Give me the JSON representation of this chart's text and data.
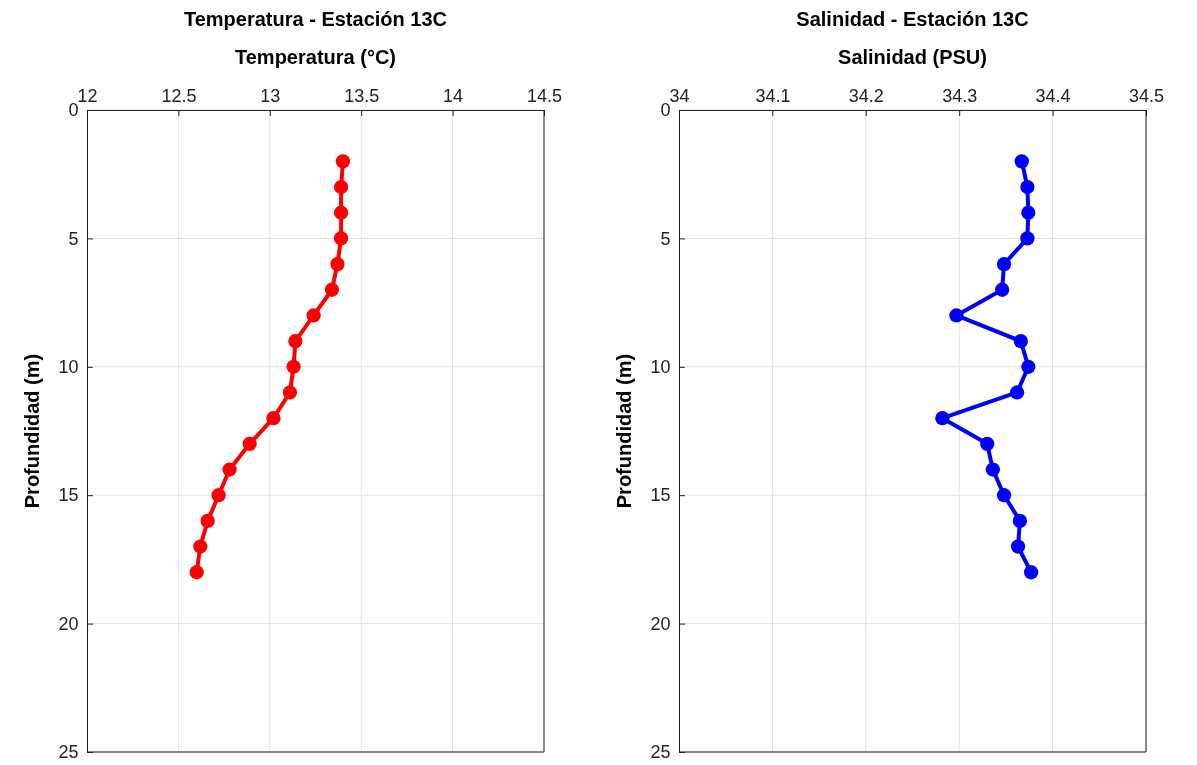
{
  "chart_data": [
    {
      "type": "line",
      "title": "Temperatura - Estación 13C",
      "xlabel": "Temperatura (°C)",
      "ylabel": "Profundidad (m)",
      "xlim": [
        12,
        14.5
      ],
      "xticks": [
        12,
        12.5,
        13,
        13.5,
        14,
        14.5
      ],
      "ylim": [
        25,
        0
      ],
      "yticks": [
        0,
        5,
        10,
        15,
        20,
        25
      ],
      "grid": true,
      "marker": "circle",
      "line_style": "solid",
      "series": [
        {
          "color": "#ff0000",
          "x": [
            13.4,
            13.39,
            13.39,
            13.39,
            13.37,
            13.34,
            13.24,
            13.14,
            13.13,
            13.11,
            13.02,
            12.89,
            12.78,
            12.72,
            12.66,
            12.62,
            12.6
          ],
          "values": [
            2,
            3,
            4,
            5,
            6,
            7,
            8,
            9,
            10,
            11,
            12,
            13,
            14,
            15,
            16,
            17,
            18
          ]
        }
      ]
    },
    {
      "type": "line",
      "title": "Salinidad - Estación 13C",
      "xlabel": "Salinidad (PSU)",
      "ylabel": "Profundidad (m)",
      "xlim": [
        34,
        34.5
      ],
      "xticks": [
        34,
        34.1,
        34.2,
        34.3,
        34.4,
        34.5
      ],
      "ylim": [
        25,
        0
      ],
      "yticks": [
        0,
        5,
        10,
        15,
        20,
        25
      ],
      "grid": true,
      "marker": "circle",
      "line_style": "solid",
      "series": [
        {
          "color": "#0000ff",
          "x": [
            34.367,
            34.373,
            34.374,
            34.373,
            34.348,
            34.346,
            34.297,
            34.366,
            34.374,
            34.362,
            34.282,
            34.33,
            34.336,
            34.348,
            34.365,
            34.363,
            34.377
          ],
          "values": [
            2,
            3,
            4,
            5,
            6,
            7,
            8,
            9,
            10,
            11,
            12,
            13,
            14,
            15,
            16,
            17,
            18
          ]
        }
      ]
    }
  ]
}
